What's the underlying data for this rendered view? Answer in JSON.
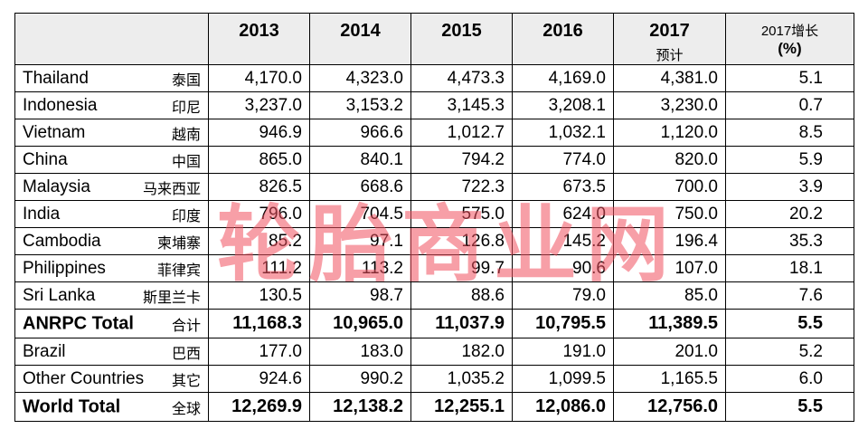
{
  "header": {
    "years": [
      "2013",
      "2014",
      "2015",
      "2016",
      "2017"
    ],
    "forecast_note": "预计",
    "growth_label": "2017增长",
    "growth_unit": "(%)"
  },
  "rows": [
    {
      "en": "Thailand",
      "cn": "泰国",
      "v": [
        "4,170.0",
        "4,323.0",
        "4,473.3",
        "4,169.0",
        "4,381.0"
      ],
      "g": "5.1"
    },
    {
      "en": "Indonesia",
      "cn": "印尼",
      "v": [
        "3,237.0",
        "3,153.2",
        "3,145.3",
        "3,208.1",
        "3,230.0"
      ],
      "g": "0.7"
    },
    {
      "en": "Vietnam",
      "cn": "越南",
      "v": [
        "946.9",
        "966.6",
        "1,012.7",
        "1,032.1",
        "1,120.0"
      ],
      "g": "8.5"
    },
    {
      "en": "China",
      "cn": "中国",
      "v": [
        "865.0",
        "840.1",
        "794.2",
        "774.0",
        "820.0"
      ],
      "g": "5.9"
    },
    {
      "en": "Malaysia",
      "cn": "马来西亚",
      "v": [
        "826.5",
        "668.6",
        "722.3",
        "673.5",
        "700.0"
      ],
      "g": "3.9"
    },
    {
      "en": "India",
      "cn": "印度",
      "v": [
        "796.0",
        "704.5",
        "575.0",
        "624.0",
        "750.0"
      ],
      "g": "20.2"
    },
    {
      "en": "Cambodia",
      "cn": "柬埔寨",
      "v": [
        "85.2",
        "97.1",
        "126.8",
        "145.2",
        "196.4"
      ],
      "g": "35.3"
    },
    {
      "en": "Philippines",
      "cn": "菲律宾",
      "v": [
        "111.2",
        "113.2",
        "99.7",
        "90.6",
        "107.0"
      ],
      "g": "18.1"
    },
    {
      "en": "Sri Lanka",
      "cn": "斯里兰卡",
      "v": [
        "130.5",
        "98.7",
        "88.6",
        "79.0",
        "85.0"
      ],
      "g": "7.6"
    },
    {
      "en": "ANRPC Total",
      "cn": "合计",
      "v": [
        "11,168.3",
        "10,965.0",
        "11,037.9",
        "10,795.5",
        "11,389.5"
      ],
      "g": "5.5"
    },
    {
      "en": "Brazil",
      "cn": "巴西",
      "v": [
        "177.0",
        "183.0",
        "182.0",
        "191.0",
        "201.0"
      ],
      "g": "5.2"
    },
    {
      "en": "Other Countries",
      "cn": "其它",
      "v": [
        "924.6",
        "990.2",
        "1,035.2",
        "1,099.5",
        "1,165.5"
      ],
      "g": "6.0"
    },
    {
      "en": "World Total",
      "cn": "全球",
      "v": [
        "12,269.9",
        "12,138.2",
        "12,255.1",
        "12,086.0",
        "12,756.0"
      ],
      "g": "5.5"
    }
  ],
  "watermark": "轮胎商业网"
}
